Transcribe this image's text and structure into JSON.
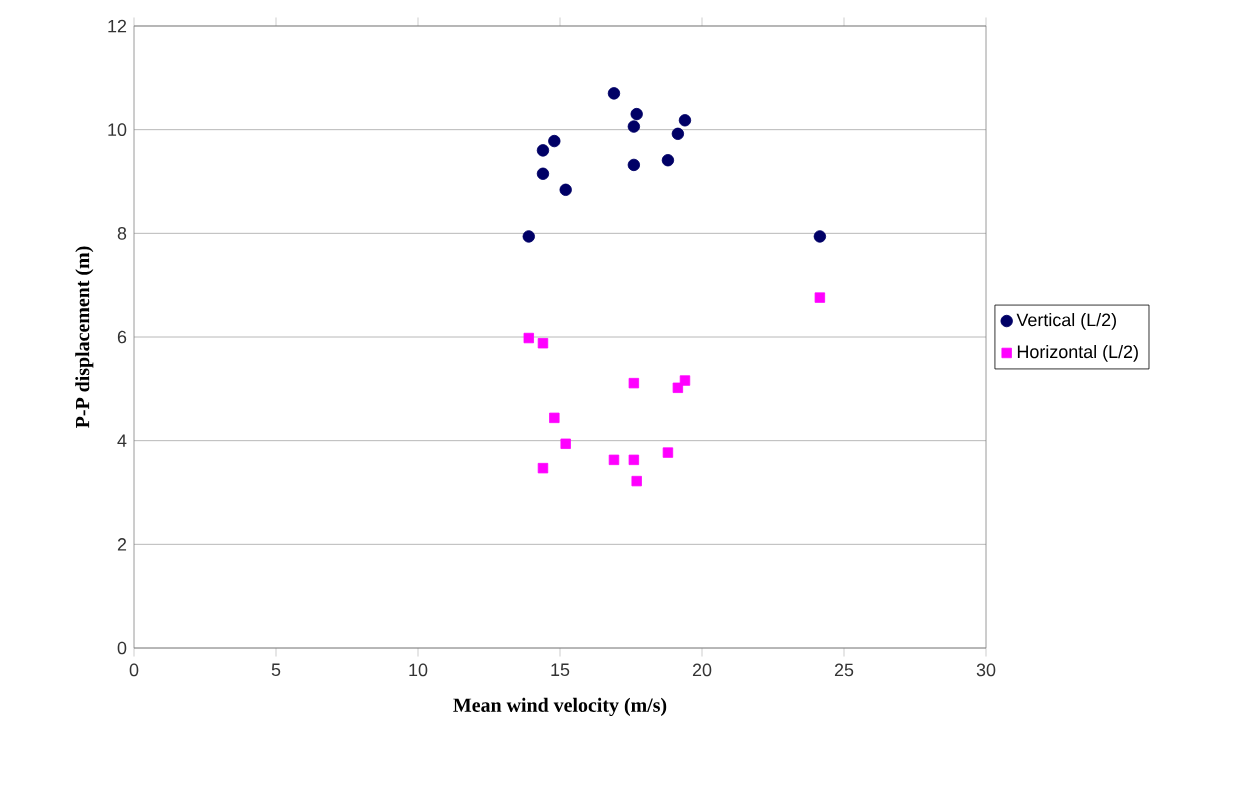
{
  "chart_data": {
    "type": "scatter",
    "xlabel": "Mean wind velocity (m/s)",
    "ylabel": "P-P displacement (m)",
    "xlim": [
      0,
      30
    ],
    "xticks": [
      0,
      5,
      10,
      15,
      20,
      25,
      30
    ],
    "ylim": [
      0,
      12
    ],
    "yticks": [
      0,
      2,
      4,
      6,
      8,
      10,
      12
    ],
    "grid": "y",
    "legend": "right",
    "series": [
      {
        "name": "Vertical (L/2)",
        "color": "#000066",
        "marker": "circle",
        "x": [
          16.9,
          17.7,
          17.6,
          19.4,
          19.15,
          14.8,
          14.4,
          14.4,
          15.2,
          17.6,
          18.8,
          13.9,
          24.15
        ],
        "values": [
          10.7,
          10.3,
          10.06,
          10.18,
          9.92,
          9.78,
          9.6,
          9.15,
          8.84,
          9.32,
          9.41,
          7.94,
          7.94
        ]
      },
      {
        "name": "Horizontal (L/2)",
        "color": "#ff00ff",
        "marker": "square",
        "x": [
          24.15,
          13.9,
          14.4,
          17.6,
          19.4,
          19.15,
          14.8,
          15.2,
          14.4,
          16.9,
          17.6,
          17.7,
          18.8
        ],
        "values": [
          6.76,
          5.98,
          5.88,
          5.11,
          5.16,
          5.02,
          4.44,
          3.94,
          3.47,
          3.63,
          3.63,
          3.22,
          3.77
        ]
      }
    ]
  }
}
